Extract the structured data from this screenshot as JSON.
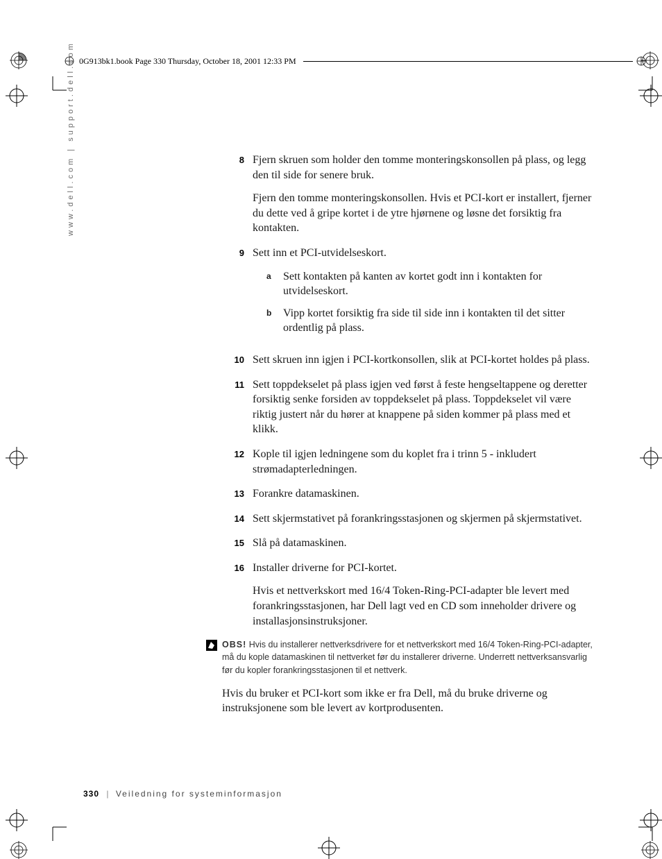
{
  "header": {
    "text": "0G913bk1.book  Page 330  Thursday, October 18, 2001  12:33 PM"
  },
  "side_url": "www.dell.com | support.dell.com",
  "steps": [
    {
      "num": "8",
      "paras": [
        "Fjern skruen som holder den tomme monteringskonsollen på plass, og legg den til side for senere bruk.",
        "Fjern den tomme monteringskonsollen. Hvis et PCI-kort er installert, fjerner du dette ved å gripe kortet i de ytre hjørnene og løsne det forsiktig fra kontakten."
      ]
    },
    {
      "num": "9",
      "paras": [
        "Sett inn et PCI-utvidelseskort."
      ],
      "subs": [
        {
          "letter": "a",
          "text": "Sett kontakten på kanten av kortet godt inn i kontakten for utvidelseskort."
        },
        {
          "letter": "b",
          "text": "Vipp kortet forsiktig fra side til side inn i kontakten til det sitter ordentlig på plass."
        }
      ]
    },
    {
      "num": "10",
      "paras": [
        "Sett skruen inn igjen i PCI-kortkonsollen, slik at PCI-kortet holdes på plass."
      ]
    },
    {
      "num": "11",
      "paras": [
        "Sett toppdekselet på plass igjen ved først å feste hengseltappene og deretter forsiktig senke forsiden av toppdekselet på plass. Toppdekselet vil være riktig justert når du hører at knappene på siden kommer på plass med et klikk."
      ]
    },
    {
      "num": "12",
      "paras": [
        "Kople til igjen ledningene som du koplet fra i trinn 5 - inkludert strømadapterledningen."
      ]
    },
    {
      "num": "13",
      "paras": [
        "Forankre datamaskinen."
      ]
    },
    {
      "num": "14",
      "paras": [
        "Sett skjermstativet på forankringsstasjonen og skjermen på skjermstativet."
      ]
    },
    {
      "num": "15",
      "paras": [
        "Slå på datamaskinen."
      ]
    },
    {
      "num": "16",
      "paras": [
        "Installer driverne for PCI-kortet.",
        "Hvis et nettverkskort med 16/4 Token-Ring-PCI-adapter ble levert med forankringsstasjonen, har Dell lagt ved en CD som inneholder drivere og installasjonsinstruksjoner."
      ]
    }
  ],
  "obs": {
    "label": "OBS!",
    "text": " Hvis du installerer nettverksdrivere for et nettverkskort med 16/4 Token-Ring-PCI-adapter, må du kople datamaskinen til nettverket før du installerer driverne. Underrett nettverksansvarlig før du kopler forankringsstasjonen til et nettverk."
  },
  "after_obs": [
    "Hvis du bruker et PCI-kort som ikke er fra Dell, må du bruke driverne og instruksjonene som ble levert av kortprodusenten."
  ],
  "footer": {
    "page": "330",
    "separator": "|",
    "text": "Veiledning for systeminformasjon"
  },
  "colors": {
    "text": "#000000",
    "muted": "#6b6b6b",
    "rule": "#000000"
  }
}
